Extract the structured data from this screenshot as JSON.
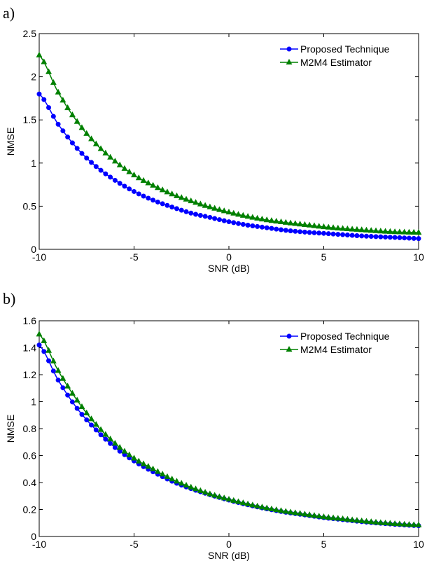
{
  "chart_data": [
    {
      "type": "line",
      "panel_label": "a)",
      "xlabel": "SNR (dB)",
      "ylabel": "NMSE",
      "xlim": [
        -10,
        10
      ],
      "ylim": [
        0,
        2.5
      ],
      "xticks": [
        -10,
        -5,
        0,
        5,
        10
      ],
      "yticks": [
        0,
        0.5,
        1,
        1.5,
        2,
        2.5
      ],
      "ytick_labels": [
        "0",
        "0.5",
        "1",
        "1.5",
        "2",
        "2.5"
      ],
      "grid": false,
      "legend_position": "top-right",
      "x": [
        -10,
        -9,
        -8,
        -7,
        -6,
        -5,
        -4,
        -3,
        -2,
        -1,
        0,
        1,
        2,
        3,
        4,
        5,
        6,
        7,
        8,
        9,
        10
      ],
      "series": [
        {
          "name": "Proposed Technique",
          "color": "#0000ff",
          "marker": "circle",
          "values": [
            1.8,
            1.45,
            1.17,
            0.96,
            0.8,
            0.67,
            0.57,
            0.49,
            0.42,
            0.37,
            0.32,
            0.28,
            0.25,
            0.22,
            0.2,
            0.185,
            0.17,
            0.155,
            0.145,
            0.135,
            0.125
          ]
        },
        {
          "name": "M2M4 Estimator",
          "color": "#008000",
          "marker": "triangle",
          "values": [
            2.25,
            1.82,
            1.48,
            1.22,
            1.02,
            0.86,
            0.74,
            0.64,
            0.56,
            0.49,
            0.43,
            0.38,
            0.34,
            0.31,
            0.285,
            0.26,
            0.24,
            0.225,
            0.21,
            0.2,
            0.195
          ]
        }
      ]
    },
    {
      "type": "line",
      "panel_label": "b)",
      "xlabel": "SNR (dB)",
      "ylabel": "NMSE",
      "xlim": [
        -10,
        10
      ],
      "ylim": [
        0,
        1.6
      ],
      "xticks": [
        -10,
        -5,
        0,
        5,
        10
      ],
      "yticks": [
        0,
        0.2,
        0.4,
        0.6,
        0.8,
        1,
        1.2,
        1.4,
        1.6
      ],
      "ytick_labels": [
        "0",
        "0.2",
        "0.4",
        "0.6",
        "0.8",
        "1",
        "1.2",
        "1.4",
        "1.6"
      ],
      "grid": false,
      "legend_position": "top-right",
      "x": [
        -10,
        -9,
        -8,
        -7,
        -6,
        -5,
        -4,
        -3,
        -2,
        -1,
        0,
        1,
        2,
        3,
        4,
        5,
        6,
        7,
        8,
        9,
        10
      ],
      "series": [
        {
          "name": "Proposed Technique",
          "color": "#0000ff",
          "marker": "circle",
          "values": [
            1.42,
            1.16,
            0.95,
            0.79,
            0.66,
            0.56,
            0.48,
            0.41,
            0.355,
            0.31,
            0.27,
            0.235,
            0.205,
            0.18,
            0.16,
            0.14,
            0.125,
            0.11,
            0.098,
            0.088,
            0.08
          ]
        },
        {
          "name": "M2M4 Estimator",
          "color": "#008000",
          "marker": "triangle",
          "values": [
            1.5,
            1.23,
            1.01,
            0.83,
            0.69,
            0.58,
            0.5,
            0.425,
            0.365,
            0.315,
            0.275,
            0.24,
            0.21,
            0.185,
            0.165,
            0.145,
            0.13,
            0.115,
            0.102,
            0.092,
            0.085
          ]
        }
      ]
    }
  ]
}
